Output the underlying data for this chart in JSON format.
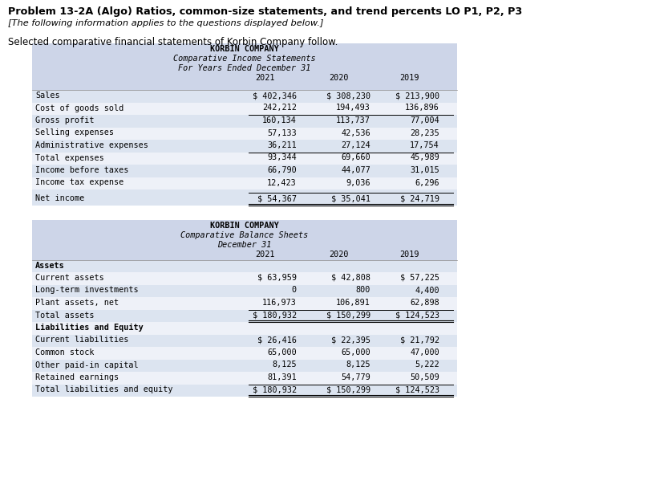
{
  "title": "Problem 13-2A (Algo) Ratios, common-size statements, and trend percents LO P1, P2, P3",
  "subtitle": "[The following information applies to the questions displayed below.]",
  "intro": "Selected comparative financial statements of Korbin Company follow.",
  "table_bg": "#cdd5e8",
  "income_title": "KORBIN COMPANY",
  "income_subtitle": "Comparative Income Statements",
  "income_sub2": "For Years Ended December 31",
  "income_years": [
    "2021",
    "2020",
    "2019"
  ],
  "income_rows": [
    {
      "label": "Sales",
      "vals": [
        "$ 402,346",
        "$ 308,230",
        "$ 213,900"
      ],
      "top_border": false,
      "double_bottom": false,
      "gap_above": false
    },
    {
      "label": "Cost of goods sold",
      "vals": [
        "242,212",
        "194,493",
        "136,896"
      ],
      "top_border": false,
      "double_bottom": false,
      "gap_above": false
    },
    {
      "label": "Gross profit",
      "vals": [
        "160,134",
        "113,737",
        "77,004"
      ],
      "top_border": true,
      "double_bottom": false,
      "gap_above": false
    },
    {
      "label": "Selling expenses",
      "vals": [
        "57,133",
        "42,536",
        "28,235"
      ],
      "top_border": false,
      "double_bottom": false,
      "gap_above": false
    },
    {
      "label": "Administrative expenses",
      "vals": [
        "36,211",
        "27,124",
        "17,754"
      ],
      "top_border": false,
      "double_bottom": false,
      "gap_above": false
    },
    {
      "label": "Total expenses",
      "vals": [
        "93,344",
        "69,660",
        "45,989"
      ],
      "top_border": true,
      "double_bottom": false,
      "gap_above": false
    },
    {
      "label": "Income before taxes",
      "vals": [
        "66,790",
        "44,077",
        "31,015"
      ],
      "top_border": false,
      "double_bottom": false,
      "gap_above": false
    },
    {
      "label": "Income tax expense",
      "vals": [
        "12,423",
        "9,036",
        "6,296"
      ],
      "top_border": false,
      "double_bottom": false,
      "gap_above": false
    },
    {
      "label": "Net income",
      "vals": [
        "$ 54,367",
        "$ 35,041",
        "$ 24,719"
      ],
      "top_border": true,
      "double_bottom": true,
      "gap_above": true
    }
  ],
  "balance_title": "KORBIN COMPANY",
  "balance_subtitle": "Comparative Balance Sheets",
  "balance_sub2": "December 31",
  "balance_years": [
    "2021",
    "2020",
    "2019"
  ],
  "balance_sections": [
    {
      "header": "Assets",
      "rows": [
        {
          "label": "Current assets",
          "vals": [
            "$ 63,959",
            "$ 42,808",
            "$ 57,225"
          ],
          "top_border": false,
          "double_bottom": false
        },
        {
          "label": "Long-term investments",
          "vals": [
            "0",
            "800",
            "4,400"
          ],
          "top_border": false,
          "double_bottom": false
        },
        {
          "label": "Plant assets, net",
          "vals": [
            "116,973",
            "106,891",
            "62,898"
          ],
          "top_border": false,
          "double_bottom": false
        },
        {
          "label": "Total assets",
          "vals": [
            "$ 180,932",
            "$ 150,299",
            "$ 124,523"
          ],
          "top_border": true,
          "double_bottom": true
        }
      ]
    },
    {
      "header": "Liabilities and Equity",
      "rows": [
        {
          "label": "Current liabilities",
          "vals": [
            "$ 26,416",
            "$ 22,395",
            "$ 21,792"
          ],
          "top_border": false,
          "double_bottom": false
        },
        {
          "label": "Common stock",
          "vals": [
            "65,000",
            "65,000",
            "47,000"
          ],
          "top_border": false,
          "double_bottom": false
        },
        {
          "label": "Other paid-in capital",
          "vals": [
            "8,125",
            "8,125",
            "5,222"
          ],
          "top_border": false,
          "double_bottom": false
        },
        {
          "label": "Retained earnings",
          "vals": [
            "81,391",
            "54,779",
            "50,509"
          ],
          "top_border": false,
          "double_bottom": false
        },
        {
          "label": "Total liabilities and equity",
          "vals": [
            "$ 180,932",
            "$ 150,299",
            "$ 124,523"
          ],
          "top_border": true,
          "double_bottom": true
        }
      ]
    }
  ]
}
